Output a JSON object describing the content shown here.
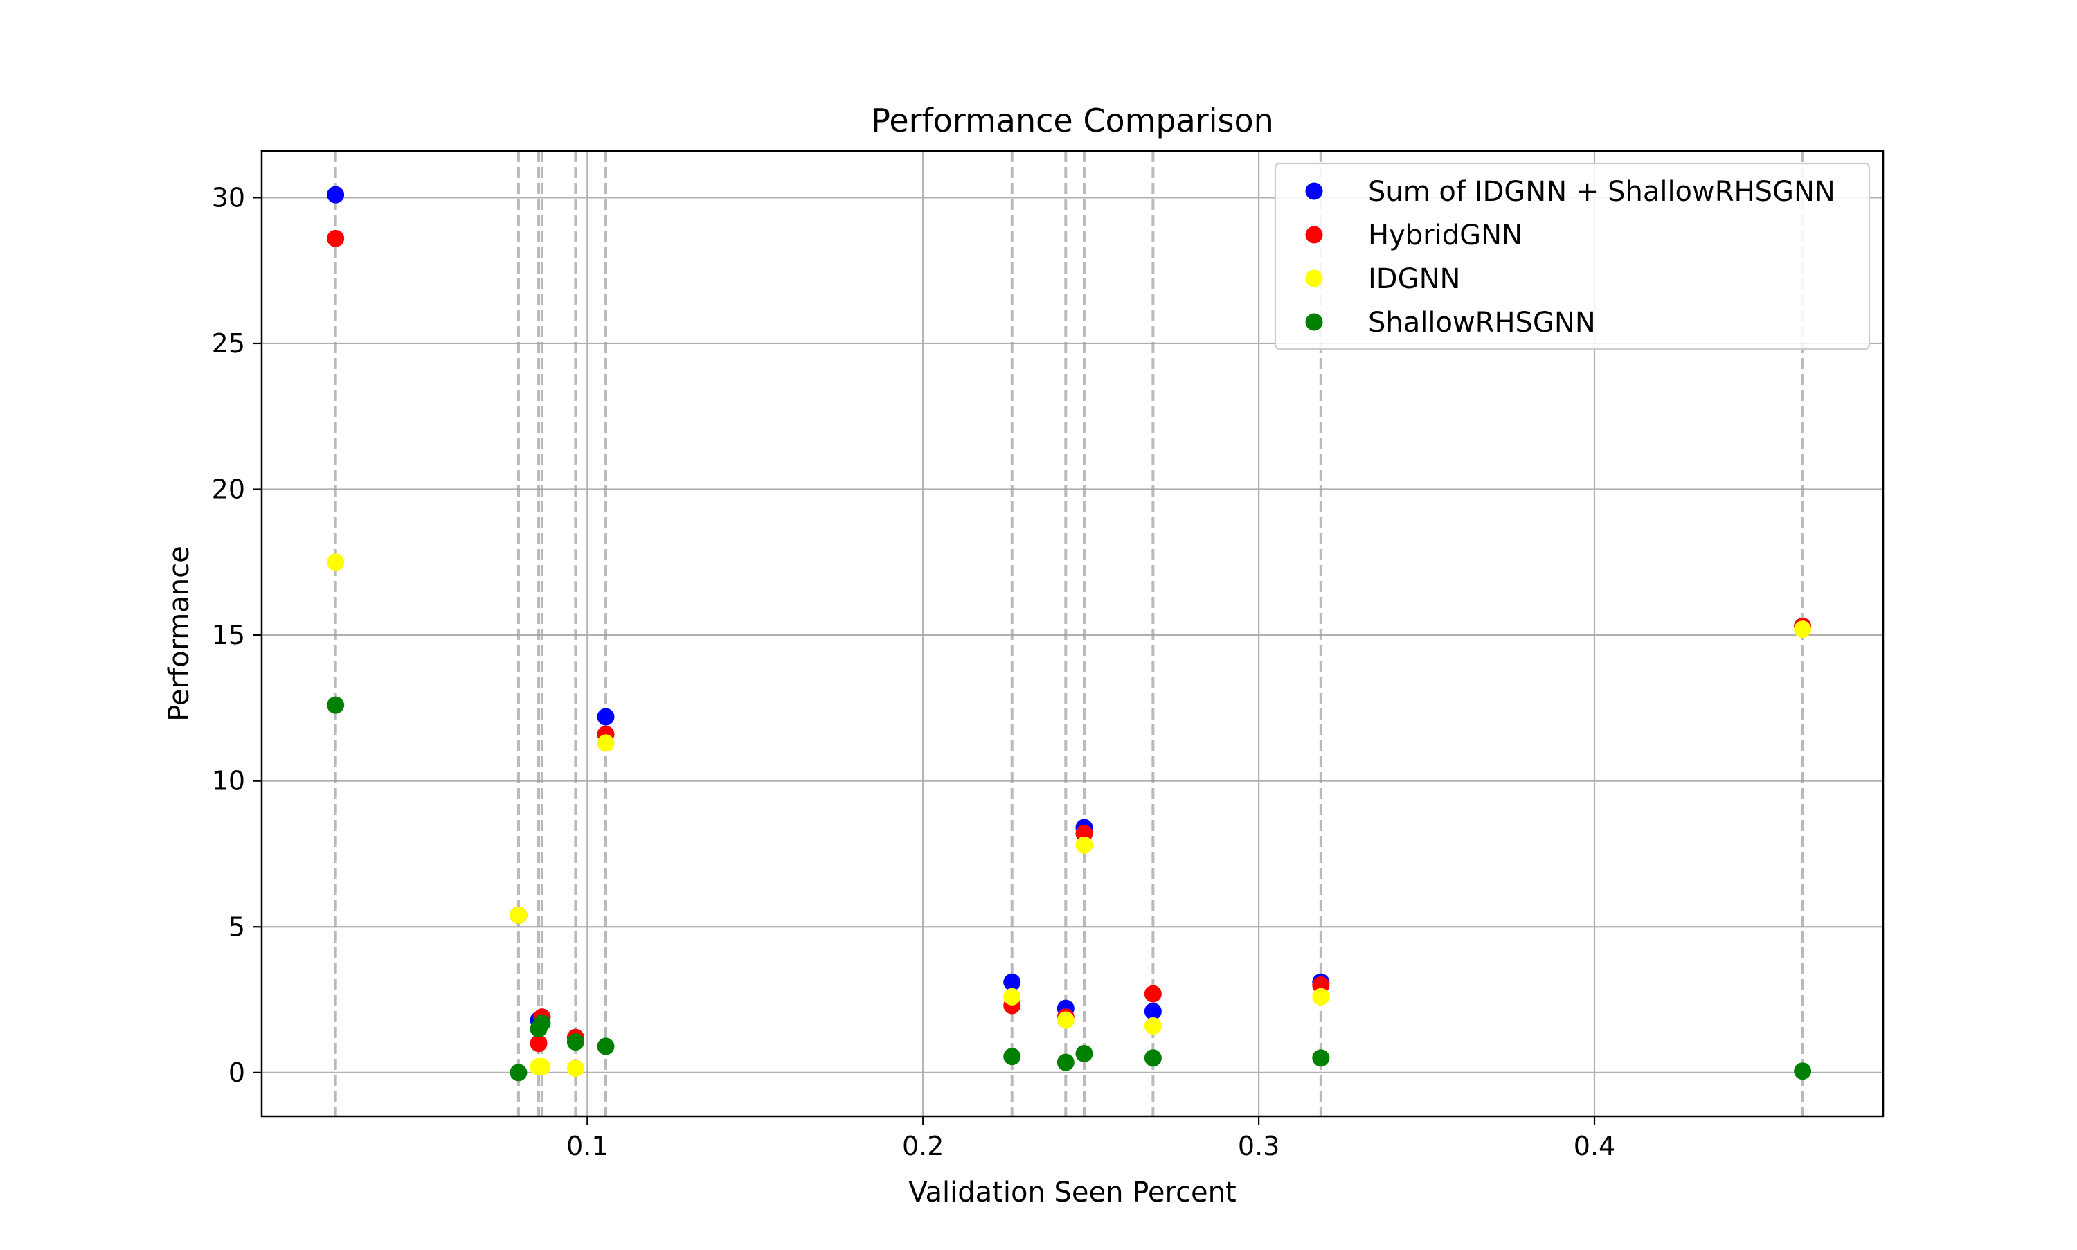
{
  "chart_data": {
    "type": "scatter",
    "title": "Performance Comparison",
    "xlabel": "Validation Seen Percent",
    "ylabel": "Performance",
    "xlim": [
      0.003,
      0.486
    ],
    "ylim": [
      -1.5,
      31.6
    ],
    "xticks": [
      0.1,
      0.2,
      0.3,
      0.4
    ],
    "xtick_labels": [
      "0.1",
      "0.2",
      "0.3",
      "0.4"
    ],
    "yticks": [
      0,
      5,
      10,
      15,
      20,
      25,
      30
    ],
    "ytick_labels": [
      "0",
      "5",
      "10",
      "15",
      "20",
      "25",
      "30"
    ],
    "grid": true,
    "legend_position": "top-right",
    "vertical_reference_lines": [
      0.025,
      0.0795,
      0.0855,
      0.0865,
      0.0965,
      0.1055,
      0.2265,
      0.2425,
      0.248,
      0.2685,
      0.3185,
      0.462
    ],
    "series": [
      {
        "name": "Sum of IDGNN + ShallowRHSGNN",
        "color": "#0000ff",
        "points": [
          {
            "x": 0.025,
            "y": 30.1
          },
          {
            "x": 0.0795,
            "y": 5.4
          },
          {
            "x": 0.0855,
            "y": 1.8
          },
          {
            "x": 0.0865,
            "y": 1.9
          },
          {
            "x": 0.0965,
            "y": 1.2
          },
          {
            "x": 0.1055,
            "y": 12.2
          },
          {
            "x": 0.2265,
            "y": 3.1
          },
          {
            "x": 0.2425,
            "y": 2.2
          },
          {
            "x": 0.248,
            "y": 8.4
          },
          {
            "x": 0.2685,
            "y": 2.1
          },
          {
            "x": 0.3185,
            "y": 3.1
          },
          {
            "x": 0.462,
            "y": 15.3
          }
        ]
      },
      {
        "name": "HybridGNN",
        "color": "#ff0000",
        "points": [
          {
            "x": 0.025,
            "y": 28.6
          },
          {
            "x": 0.0795,
            "y": 5.4
          },
          {
            "x": 0.0855,
            "y": 1.0
          },
          {
            "x": 0.0865,
            "y": 1.9
          },
          {
            "x": 0.0965,
            "y": 1.2
          },
          {
            "x": 0.1055,
            "y": 11.6
          },
          {
            "x": 0.2265,
            "y": 2.3
          },
          {
            "x": 0.2425,
            "y": 1.9
          },
          {
            "x": 0.248,
            "y": 8.2
          },
          {
            "x": 0.2685,
            "y": 2.7
          },
          {
            "x": 0.3185,
            "y": 3.0
          },
          {
            "x": 0.462,
            "y": 15.3
          }
        ]
      },
      {
        "name": "IDGNN",
        "color": "#ffff00",
        "points": [
          {
            "x": 0.025,
            "y": 17.5
          },
          {
            "x": 0.0795,
            "y": 5.4
          },
          {
            "x": 0.0855,
            "y": 0.2
          },
          {
            "x": 0.0865,
            "y": 0.2
          },
          {
            "x": 0.0965,
            "y": 0.15
          },
          {
            "x": 0.1055,
            "y": 11.3
          },
          {
            "x": 0.2265,
            "y": 2.6
          },
          {
            "x": 0.2425,
            "y": 1.8
          },
          {
            "x": 0.248,
            "y": 7.8
          },
          {
            "x": 0.2685,
            "y": 1.6
          },
          {
            "x": 0.3185,
            "y": 2.6
          },
          {
            "x": 0.462,
            "y": 15.2
          }
        ]
      },
      {
        "name": "ShallowRHSGNN",
        "color": "#008000",
        "points": [
          {
            "x": 0.025,
            "y": 12.6
          },
          {
            "x": 0.0795,
            "y": 0.0
          },
          {
            "x": 0.0855,
            "y": 1.5
          },
          {
            "x": 0.0865,
            "y": 1.7
          },
          {
            "x": 0.0965,
            "y": 1.05
          },
          {
            "x": 0.1055,
            "y": 0.9
          },
          {
            "x": 0.2265,
            "y": 0.55
          },
          {
            "x": 0.2425,
            "y": 0.35
          },
          {
            "x": 0.248,
            "y": 0.65
          },
          {
            "x": 0.2685,
            "y": 0.5
          },
          {
            "x": 0.3185,
            "y": 0.5
          },
          {
            "x": 0.462,
            "y": 0.05
          }
        ]
      }
    ]
  }
}
